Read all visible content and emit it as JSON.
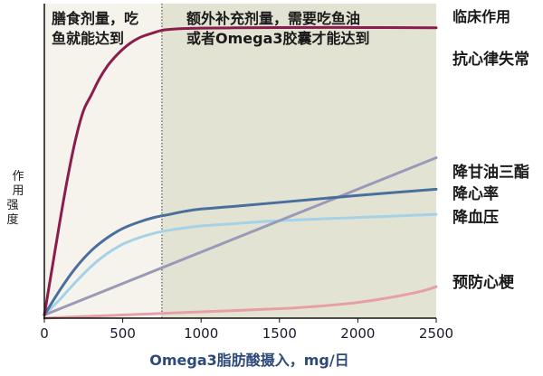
{
  "chart_data": {
    "type": "line",
    "xlabel": "Omega3脂肪酸摄入，mg/日",
    "ylabel": [
      "作",
      "用",
      "强",
      "度"
    ],
    "xlim": [
      0,
      2500
    ],
    "ylim": [
      0,
      1
    ],
    "x_ticks": [
      0,
      500,
      1000,
      1500,
      2000,
      2500
    ],
    "dietary_boundary": 750,
    "regions": [
      {
        "text_lines": [
          "膳食剂量，吃",
          "鱼就能达到"
        ],
        "color": "#f6f3ec"
      },
      {
        "text_lines": [
          "额外补充剂量，需要吃鱼油",
          "或者Omega3胶囊才能达到"
        ],
        "color": "#e3e3d4"
      }
    ],
    "right_header": "临床作用",
    "series": [
      {
        "name": "抗心律失常",
        "color": "#8a1d4e",
        "x": [
          0,
          50,
          100,
          150,
          200,
          250,
          300,
          350,
          400,
          450,
          500,
          550,
          600,
          650,
          700,
          750,
          800,
          900,
          1000,
          1200,
          1500,
          2000,
          2500
        ],
        "y": [
          0.01,
          0.16,
          0.31,
          0.45,
          0.57,
          0.66,
          0.71,
          0.76,
          0.8,
          0.83,
          0.855,
          0.875,
          0.89,
          0.9,
          0.908,
          0.915,
          0.918,
          0.921,
          0.922,
          0.923,
          0.924,
          0.924,
          0.923
        ]
      },
      {
        "name": "降甘油三酯",
        "color": "#9a9ab8",
        "x": [
          0,
          2500
        ],
        "y": [
          0.01,
          0.51
        ]
      },
      {
        "name": "降心率",
        "color": "#4a6f9d",
        "x": [
          0,
          100,
          200,
          300,
          400,
          500,
          600,
          700,
          800,
          900,
          1000,
          1200,
          1500,
          2000,
          2500
        ],
        "y": [
          0.01,
          0.09,
          0.16,
          0.215,
          0.255,
          0.285,
          0.305,
          0.32,
          0.33,
          0.34,
          0.347,
          0.355,
          0.368,
          0.39,
          0.41
        ]
      },
      {
        "name": "降血压",
        "color": "#a5d2e8",
        "x": [
          0,
          100,
          200,
          300,
          400,
          500,
          600,
          700,
          800,
          900,
          1000,
          1200,
          1500,
          2000,
          2500
        ],
        "y": [
          0.01,
          0.06,
          0.115,
          0.165,
          0.205,
          0.235,
          0.255,
          0.27,
          0.28,
          0.287,
          0.293,
          0.3,
          0.31,
          0.32,
          0.33
        ]
      },
      {
        "name": "预防心梗",
        "color": "#e6a0a5",
        "x": [
          0,
          500,
          1000,
          1500,
          1800,
          2000,
          2200,
          2400,
          2500
        ],
        "y": [
          0.0,
          0.01,
          0.02,
          0.03,
          0.04,
          0.05,
          0.065,
          0.085,
          0.1
        ]
      }
    ]
  }
}
